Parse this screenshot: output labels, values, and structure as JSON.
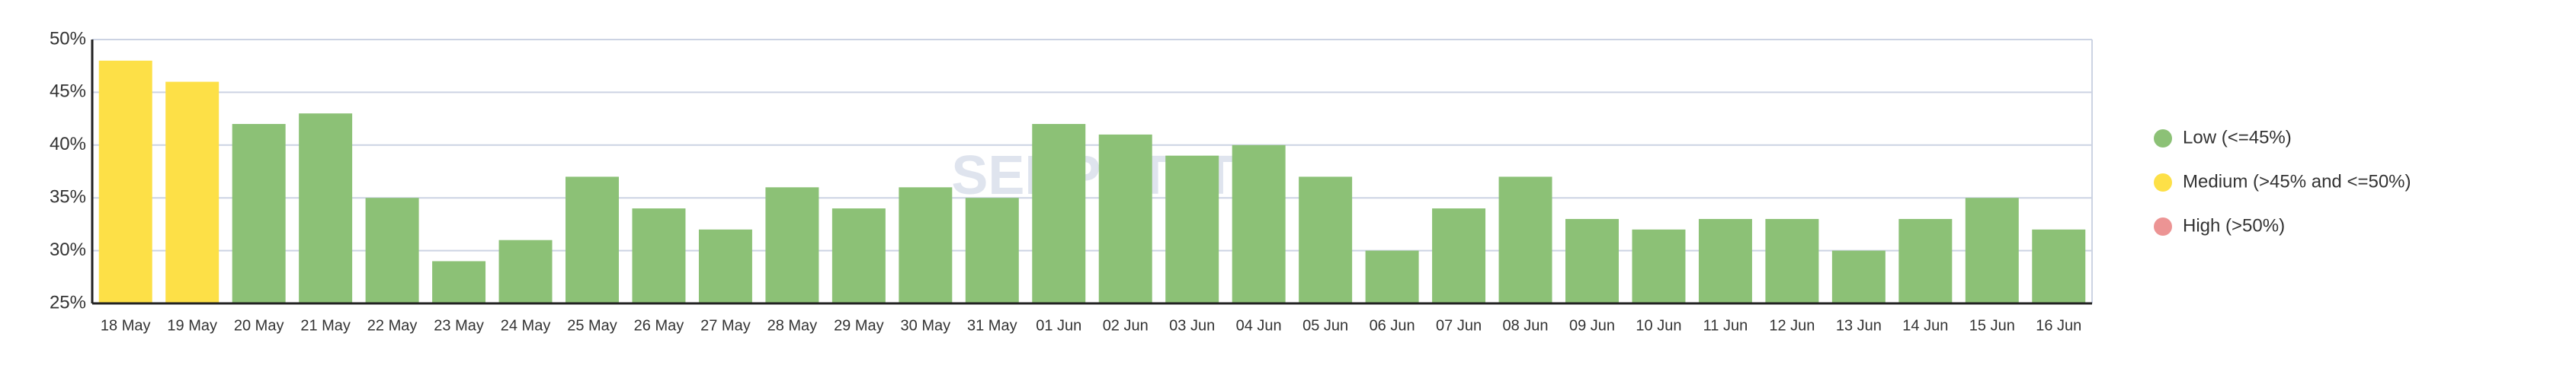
{
  "chart_data": {
    "type": "bar",
    "watermark": "SERPSTAT",
    "categories": [
      "18 May",
      "19 May",
      "20 May",
      "21 May",
      "22 May",
      "23 May",
      "24 May",
      "25 May",
      "26 May",
      "27 May",
      "28 May",
      "29 May",
      "30 May",
      "31 May",
      "01 Jun",
      "02 Jun",
      "03 Jun",
      "04 Jun",
      "05 Jun",
      "06 Jun",
      "07 Jun",
      "08 Jun",
      "09 Jun",
      "10 Jun",
      "11 Jun",
      "12 Jun",
      "13 Jun",
      "14 Jun",
      "15 Jun",
      "16 Jun"
    ],
    "values": [
      48,
      46,
      42,
      43,
      35,
      29,
      31,
      37,
      34,
      32,
      36,
      34,
      36,
      35,
      42,
      41,
      39,
      40,
      37,
      30,
      34,
      37,
      33,
      32,
      33,
      33,
      30,
      33,
      35,
      32
    ],
    "colors": [
      "#fde047",
      "#fde047",
      "#8cc176",
      "#8cc176",
      "#8cc176",
      "#8cc176",
      "#8cc176",
      "#8cc176",
      "#8cc176",
      "#8cc176",
      "#8cc176",
      "#8cc176",
      "#8cc176",
      "#8cc176",
      "#8cc176",
      "#8cc176",
      "#8cc176",
      "#8cc176",
      "#8cc176",
      "#8cc176",
      "#8cc176",
      "#8cc176",
      "#8cc176",
      "#8cc176",
      "#8cc176",
      "#8cc176",
      "#8cc176",
      "#8cc176",
      "#8cc176",
      "#8cc176"
    ],
    "ylim": [
      25,
      50
    ],
    "yticks": [
      {
        "value": 25,
        "label": "25%"
      },
      {
        "value": 30,
        "label": "30%"
      },
      {
        "value": 35,
        "label": "35%"
      },
      {
        "value": 40,
        "label": "40%"
      },
      {
        "value": 45,
        "label": "45%"
      },
      {
        "value": 50,
        "label": "50%"
      }
    ],
    "grid": true,
    "legend": [
      {
        "name": "Low (<=45%)",
        "color": "#8cc176"
      },
      {
        "name": "Medium (>45% and <=50%)",
        "color": "#fde047"
      },
      {
        "name": "High (>50%)",
        "color": "#ec9494"
      }
    ]
  }
}
